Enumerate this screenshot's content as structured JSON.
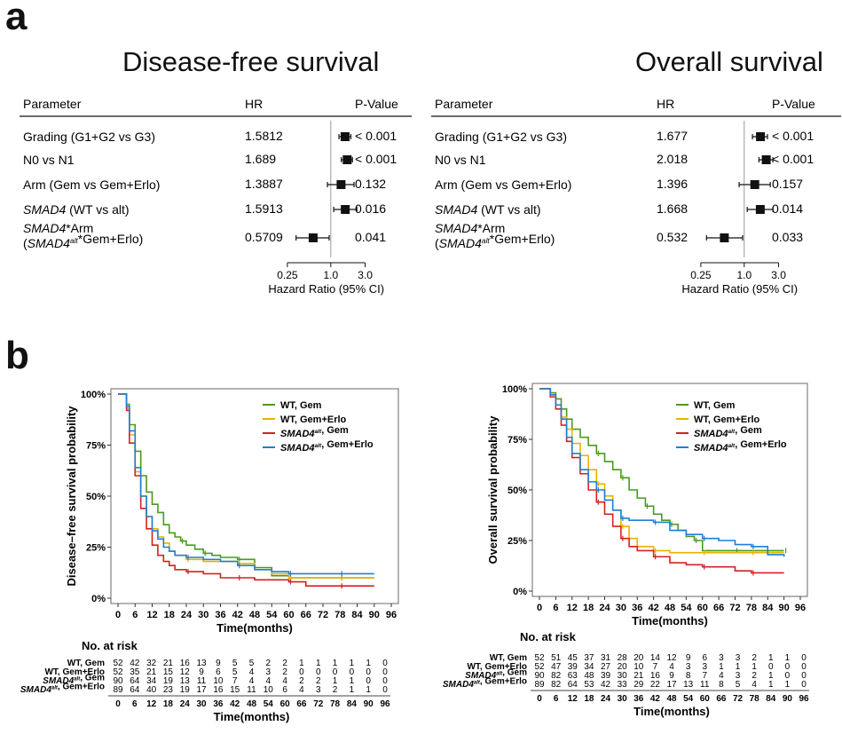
{
  "panels": {
    "a": "a",
    "b": "b"
  },
  "forest": [
    {
      "title": "Disease-free survival",
      "headers": {
        "parameter": "Parameter",
        "hr": "HR",
        "p": "P-Value"
      },
      "rows": [
        {
          "label": "Grading (G1+G2 vs G3)",
          "hr": "1.5812",
          "p": "< 0.001",
          "est": 1.58,
          "lo": 1.3,
          "hi": 1.9
        },
        {
          "label": "N0 vs N1",
          "hr": "1.689",
          "p": "< 0.001",
          "est": 1.69,
          "lo": 1.4,
          "hi": 2.0
        },
        {
          "label": "Arm (Gem vs Gem+Erlo)",
          "hr": "1.3887",
          "p": "0.132",
          "est": 1.39,
          "lo": 0.9,
          "hi": 2.1
        },
        {
          "label": "SMAD4 (WT vs alt)",
          "hr": "1.5913",
          "p": "0.016",
          "est": 1.59,
          "lo": 1.1,
          "hi": 2.3
        },
        {
          "label": "SMAD4*Arm (SMAD4alt*Gem+Erlo)",
          "hr": "0.5709",
          "p": "0.041",
          "est": 0.57,
          "lo": 0.33,
          "hi": 0.95
        }
      ],
      "ticks": [
        "0.25",
        "1.0",
        "3.0"
      ],
      "xlabel": "Hazard Ratio (95% CI)"
    },
    {
      "title": "Overall survival",
      "headers": {
        "parameter": "Parameter",
        "hr": "HR",
        "p": "P-Value"
      },
      "rows": [
        {
          "label": "Grading (G1+G2 vs G3)",
          "hr": "1.677",
          "p": "< 0.001",
          "est": 1.68,
          "lo": 1.3,
          "hi": 2.1
        },
        {
          "label": "N0 vs N1",
          "hr": "2.018",
          "p": "< 0.001",
          "est": 2.02,
          "lo": 1.6,
          "hi": 2.5
        },
        {
          "label": "Arm (Gem vs Gem+Erlo)",
          "hr": "1.396",
          "p": "0.157",
          "est": 1.4,
          "lo": 0.85,
          "hi": 2.3
        },
        {
          "label": "SMAD4 (WT vs alt)",
          "hr": "1.668",
          "p": "0.014",
          "est": 1.67,
          "lo": 1.1,
          "hi": 2.5
        },
        {
          "label": "SMAD4*Arm (SMAD4alt*Gem+Erlo)",
          "hr": "0.532",
          "p": "0.033",
          "est": 0.53,
          "lo": 0.3,
          "hi": 0.95
        }
      ],
      "ticks": [
        "0.25",
        "1.0",
        "3.0"
      ],
      "xlabel": "Hazard Ratio (95% CI)"
    }
  ],
  "chart_data": [
    {
      "type": "line",
      "ylabel": "Disease–free survival probability",
      "xlabel": "Time(months)",
      "xticks": [
        0,
        6,
        12,
        18,
        24,
        30,
        36,
        42,
        48,
        54,
        60,
        66,
        72,
        78,
        84,
        90,
        96
      ],
      "yticks": [
        "0%",
        "25%",
        "50%",
        "75%",
        "100%"
      ],
      "xlim": [
        0,
        96
      ],
      "ylim": [
        0,
        1
      ],
      "series": [
        {
          "name": "WT, Gem",
          "color": "#4a9a1e",
          "x": [
            0,
            3,
            4,
            6,
            8,
            10,
            12,
            14,
            16,
            18,
            20,
            22,
            24,
            27,
            30,
            33,
            36,
            42,
            48,
            54,
            60,
            66,
            72,
            78,
            84,
            90
          ],
          "y": [
            1,
            0.95,
            0.85,
            0.72,
            0.6,
            0.52,
            0.46,
            0.42,
            0.36,
            0.32,
            0.3,
            0.28,
            0.26,
            0.24,
            0.22,
            0.21,
            0.2,
            0.19,
            0.15,
            0.11,
            0.1,
            0.1,
            0.1,
            0.1,
            0.1,
            0.1
          ]
        },
        {
          "name": "WT, Gem+Erlo",
          "color": "#e8b300",
          "x": [
            0,
            3,
            4,
            6,
            8,
            10,
            12,
            14,
            16,
            18,
            20,
            24,
            30,
            36,
            42,
            48,
            54,
            60,
            66,
            72,
            78,
            84,
            90
          ],
          "y": [
            1,
            0.93,
            0.8,
            0.62,
            0.5,
            0.4,
            0.34,
            0.3,
            0.27,
            0.23,
            0.21,
            0.19,
            0.18,
            0.18,
            0.17,
            0.14,
            0.12,
            0.1,
            0.1,
            0.1,
            0.1,
            0.1,
            0.1
          ]
        },
        {
          "name": "SMAD4alt, Gem",
          "color": "#d62020",
          "x": [
            0,
            3,
            4,
            6,
            8,
            10,
            12,
            14,
            16,
            18,
            20,
            24,
            30,
            36,
            42,
            48,
            54,
            60,
            66,
            72,
            78,
            84,
            90
          ],
          "y": [
            1,
            0.92,
            0.76,
            0.6,
            0.44,
            0.34,
            0.26,
            0.21,
            0.18,
            0.16,
            0.14,
            0.13,
            0.12,
            0.1,
            0.1,
            0.09,
            0.09,
            0.08,
            0.06,
            0.06,
            0.06,
            0.06,
            0.06
          ]
        },
        {
          "name": "SMAD4alt, Gem+Erlo",
          "color": "#1f7fd6",
          "x": [
            0,
            3,
            4,
            6,
            8,
            10,
            12,
            14,
            16,
            18,
            20,
            24,
            30,
            36,
            42,
            48,
            54,
            60,
            66,
            72,
            78,
            84,
            90
          ],
          "y": [
            1,
            0.94,
            0.82,
            0.64,
            0.5,
            0.4,
            0.33,
            0.29,
            0.25,
            0.23,
            0.21,
            0.2,
            0.19,
            0.18,
            0.16,
            0.14,
            0.13,
            0.12,
            0.12,
            0.12,
            0.12,
            0.12,
            0.12
          ]
        }
      ],
      "legend_position": "top-right",
      "risk": {
        "title": "No. at risk",
        "labels": [
          "WT, Gem",
          "WT, Gem+Erlo",
          "SMAD4alt, Gem",
          "SMAD4alt, Gem+Erlo"
        ],
        "rows": [
          [
            52,
            42,
            32,
            21,
            16,
            13,
            9,
            5,
            5,
            2,
            2,
            1,
            1,
            1,
            1,
            1,
            0
          ],
          [
            52,
            35,
            21,
            15,
            12,
            9,
            6,
            5,
            4,
            3,
            2,
            0,
            0,
            0,
            0,
            0,
            0
          ],
          [
            90,
            64,
            34,
            19,
            13,
            11,
            10,
            7,
            4,
            4,
            4,
            2,
            2,
            1,
            1,
            0,
            0
          ],
          [
            89,
            64,
            40,
            23,
            19,
            17,
            16,
            15,
            11,
            10,
            6,
            4,
            3,
            2,
            1,
            1,
            0
          ]
        ],
        "xlabel": "Time(months)"
      }
    },
    {
      "type": "line",
      "ylabel": "Overall survival probability",
      "xlabel": "Time(months)",
      "xticks": [
        0,
        6,
        12,
        18,
        24,
        30,
        36,
        42,
        48,
        54,
        60,
        66,
        72,
        78,
        84,
        90,
        96
      ],
      "yticks": [
        "0%",
        "25%",
        "50%",
        "75%",
        "100%"
      ],
      "xlim": [
        0,
        96
      ],
      "ylim": [
        0,
        1
      ],
      "series": [
        {
          "name": "WT, Gem",
          "color": "#4a9a1e",
          "x": [
            0,
            4,
            6,
            8,
            10,
            12,
            15,
            18,
            21,
            24,
            27,
            30,
            33,
            36,
            39,
            42,
            45,
            48,
            51,
            54,
            57,
            60,
            66,
            72,
            78,
            84,
            90
          ],
          "y": [
            1,
            0.98,
            0.95,
            0.9,
            0.85,
            0.8,
            0.76,
            0.72,
            0.68,
            0.64,
            0.6,
            0.56,
            0.5,
            0.46,
            0.42,
            0.38,
            0.35,
            0.33,
            0.3,
            0.27,
            0.25,
            0.2,
            0.2,
            0.2,
            0.2,
            0.2,
            0.2
          ]
        },
        {
          "name": "WT, Gem+Erlo",
          "color": "#e8b300",
          "x": [
            0,
            4,
            6,
            8,
            10,
            12,
            15,
            18,
            21,
            24,
            27,
            30,
            33,
            36,
            42,
            48,
            54,
            60,
            66,
            72,
            78,
            84,
            90
          ],
          "y": [
            1,
            0.97,
            0.92,
            0.86,
            0.8,
            0.73,
            0.67,
            0.6,
            0.53,
            0.47,
            0.4,
            0.32,
            0.26,
            0.22,
            0.2,
            0.19,
            0.19,
            0.19,
            0.19,
            0.19,
            0.19,
            0.19,
            0.19
          ]
        },
        {
          "name": "SMAD4alt, Gem",
          "color": "#d62020",
          "x": [
            0,
            4,
            6,
            8,
            10,
            12,
            15,
            18,
            21,
            24,
            27,
            30,
            33,
            36,
            42,
            48,
            54,
            60,
            66,
            72,
            78,
            84,
            90
          ],
          "y": [
            1,
            0.96,
            0.9,
            0.82,
            0.74,
            0.66,
            0.58,
            0.5,
            0.44,
            0.38,
            0.32,
            0.26,
            0.22,
            0.2,
            0.17,
            0.14,
            0.13,
            0.12,
            0.12,
            0.1,
            0.09,
            0.09,
            0.09
          ]
        },
        {
          "name": "SMAD4alt, Gem+Erlo",
          "color": "#1f7fd6",
          "x": [
            0,
            4,
            6,
            8,
            10,
            12,
            15,
            18,
            21,
            24,
            27,
            30,
            33,
            36,
            42,
            48,
            54,
            60,
            66,
            72,
            78,
            84,
            90
          ],
          "y": [
            1,
            0.97,
            0.92,
            0.85,
            0.76,
            0.68,
            0.6,
            0.54,
            0.5,
            0.45,
            0.4,
            0.36,
            0.35,
            0.35,
            0.34,
            0.3,
            0.28,
            0.26,
            0.25,
            0.23,
            0.22,
            0.18,
            0.17
          ]
        }
      ],
      "legend_position": "top-right",
      "risk": {
        "title": "No. at risk",
        "labels": [
          "WT, Gem",
          "WT, Gem+Erlo",
          "SMAD4alt, Gem",
          "SMAD4alt, Gem+Erlo"
        ],
        "rows": [
          [
            52,
            51,
            45,
            37,
            31,
            28,
            20,
            14,
            12,
            9,
            6,
            3,
            3,
            2,
            1,
            1,
            0
          ],
          [
            52,
            47,
            39,
            34,
            27,
            20,
            10,
            7,
            4,
            3,
            3,
            1,
            1,
            1,
            0,
            0,
            0
          ],
          [
            90,
            82,
            63,
            48,
            39,
            30,
            21,
            16,
            9,
            8,
            7,
            4,
            3,
            2,
            1,
            0,
            0
          ],
          [
            89,
            82,
            64,
            53,
            42,
            33,
            29,
            22,
            17,
            13,
            11,
            8,
            5,
            4,
            1,
            1,
            0
          ]
        ],
        "xlabel": "Time(months)"
      }
    }
  ]
}
